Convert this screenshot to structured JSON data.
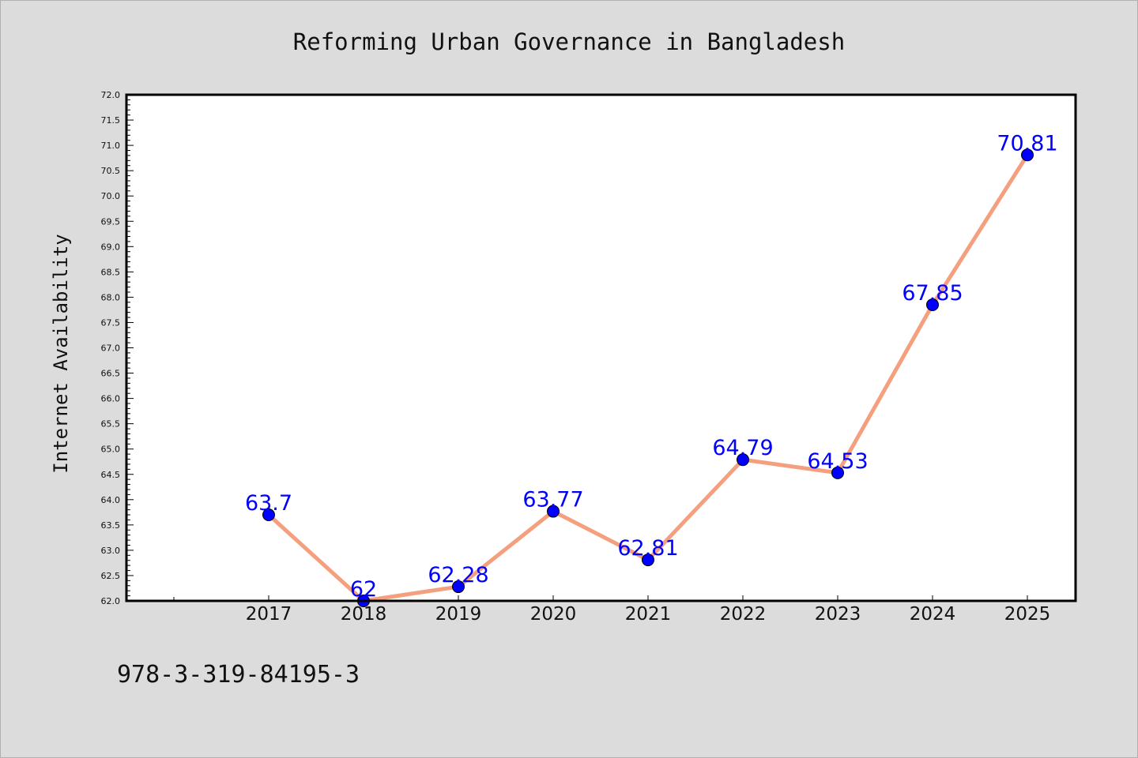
{
  "chart_data": {
    "type": "line",
    "title": "Reforming Urban Governance in Bangladesh",
    "xlabel": "",
    "ylabel": "Internet Availability",
    "categories": [
      "2017",
      "2018",
      "2019",
      "2020",
      "2021",
      "2022",
      "2023",
      "2024",
      "2025"
    ],
    "series": [
      {
        "values": [
          63.7,
          62,
          62.28,
          63.77,
          62.81,
          64.79,
          64.53,
          67.85,
          70.81
        ],
        "labels": [
          "63.7",
          "62",
          "62.28",
          "63.77",
          "62.81",
          "64.79",
          "64.53",
          "67.85",
          "70.81"
        ]
      }
    ],
    "ylim": [
      62.0,
      72.0
    ],
    "ytick_step": 0.5,
    "grid": false,
    "line_color": "#f4a07f",
    "marker_color": "#0000ff",
    "label_color": "#0000ff"
  },
  "footer": {
    "isbn": "978-3-319-84195-3"
  }
}
